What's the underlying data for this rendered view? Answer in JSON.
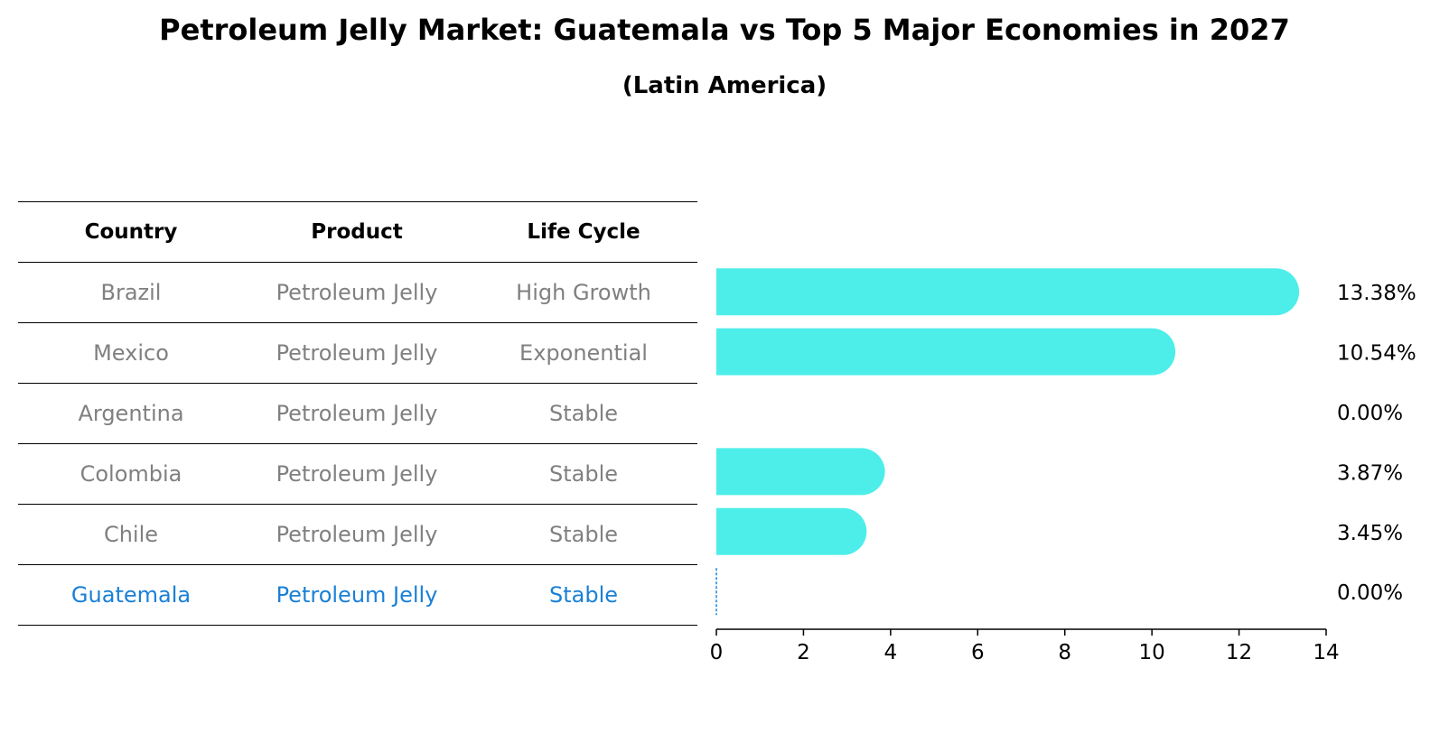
{
  "title": "Petroleum Jelly Market: Guatemala vs Top 5 Major Economies in 2027",
  "subtitle": "(Latin America)",
  "table": {
    "headers": [
      "Country",
      "Product",
      "Life Cycle"
    ],
    "rows": [
      {
        "country": "Brazil",
        "product": "Petroleum Jelly",
        "life_cycle": "High Growth"
      },
      {
        "country": "Mexico",
        "product": "Petroleum Jelly",
        "life_cycle": "Exponential"
      },
      {
        "country": "Argentina",
        "product": "Petroleum Jelly",
        "life_cycle": "Stable"
      },
      {
        "country": "Colombia",
        "product": "Petroleum Jelly",
        "life_cycle": "Stable"
      },
      {
        "country": "Chile",
        "product": "Petroleum Jelly",
        "life_cycle": "Stable"
      },
      {
        "country": "Guatemala",
        "product": "Petroleum Jelly",
        "life_cycle": "Stable"
      }
    ]
  },
  "colors": {
    "bar": "#4deeea",
    "highlight": "#1a80d6",
    "muted_text": "#808080"
  },
  "chart_data": {
    "type": "bar",
    "orientation": "horizontal",
    "categories": [
      "Brazil",
      "Mexico",
      "Argentina",
      "Colombia",
      "Chile",
      "Guatemala"
    ],
    "values": [
      13.38,
      10.54,
      0.0,
      3.87,
      3.45,
      0.0
    ],
    "value_labels": [
      "13.38%",
      "10.54%",
      "0.00%",
      "3.87%",
      "3.45%",
      "0.00%"
    ],
    "highlight_category": "Guatemala",
    "xlim": [
      0,
      14
    ],
    "xticks": [
      0,
      2,
      4,
      6,
      8,
      10,
      12,
      14
    ],
    "xtick_labels": [
      "0",
      "2",
      "4",
      "6",
      "8",
      "10",
      "12",
      "14"
    ],
    "title": "Petroleum Jelly Market: Guatemala vs Top 5 Major Economies in 2027",
    "subtitle": "(Latin America)",
    "xlabel": "",
    "ylabel": "",
    "grid": false
  }
}
